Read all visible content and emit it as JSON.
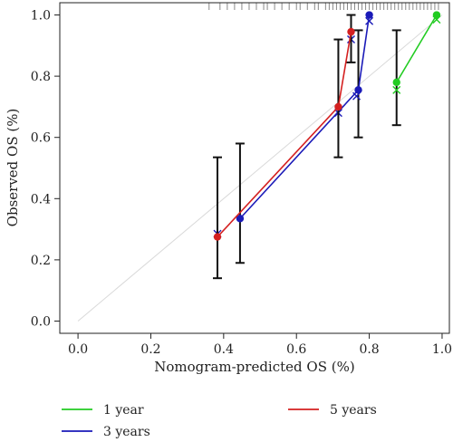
{
  "chart_data": {
    "type": "line",
    "title": "",
    "xlabel": "Nomogram-predicted OS (%)",
    "ylabel": "Observed OS (%)",
    "xlim": [
      -0.05,
      1.02
    ],
    "ylim": [
      -0.04,
      1.04
    ],
    "x_ticks": [
      0.0,
      0.2,
      0.4,
      0.6,
      0.8,
      1.0
    ],
    "y_ticks": [
      0.0,
      0.2,
      0.4,
      0.6,
      0.8,
      1.0
    ],
    "x_tick_labels": [
      "0.0",
      "0.2",
      "0.4",
      "0.6",
      "0.8",
      "1.0"
    ],
    "y_tick_labels": [
      "0.0",
      "0.2",
      "0.4",
      "0.6",
      "0.8",
      "1.0"
    ],
    "grid": false,
    "legend_position": "bottom",
    "reference_line": {
      "from": [
        0,
        0
      ],
      "to": [
        1,
        1
      ],
      "color": "#d9d9d9"
    },
    "rug_x": [
      0.36,
      0.39,
      0.41,
      0.43,
      0.45,
      0.47,
      0.49,
      0.51,
      0.52,
      0.54,
      0.56,
      0.58,
      0.6,
      0.61,
      0.63,
      0.65,
      0.66,
      0.68,
      0.69,
      0.7,
      0.71,
      0.72,
      0.73,
      0.74,
      0.75,
      0.76,
      0.77,
      0.78,
      0.79,
      0.8,
      0.81,
      0.82,
      0.83,
      0.84,
      0.85,
      0.86,
      0.87,
      0.88,
      0.89,
      0.9,
      0.91,
      0.92,
      0.93,
      0.94,
      0.95,
      0.96,
      0.97,
      0.98,
      0.99
    ],
    "series": [
      {
        "name": "1 year",
        "color": "#22cc22",
        "points": [
          {
            "x": 0.875,
            "y": 0.78,
            "lo": 0.64,
            "hi": 0.95
          },
          {
            "x": 0.985,
            "y": 1.0,
            "lo": 1.0,
            "hi": 1.0
          }
        ],
        "crosses": [
          {
            "x": 0.875,
            "y": 0.755
          },
          {
            "x": 0.985,
            "y": 0.985
          }
        ]
      },
      {
        "name": "3 years",
        "color": "#1a1ab8",
        "points": [
          {
            "x": 0.445,
            "y": 0.335,
            "lo": 0.19,
            "hi": 0.58
          },
          {
            "x": 0.77,
            "y": 0.755,
            "lo": 0.6,
            "hi": 0.95
          },
          {
            "x": 0.8,
            "y": 1.0,
            "lo": 1.0,
            "hi": 1.0
          }
        ],
        "crosses": [
          {
            "x": 0.383,
            "y": 0.285
          },
          {
            "x": 0.715,
            "y": 0.68
          },
          {
            "x": 0.765,
            "y": 0.735
          },
          {
            "x": 0.8,
            "y": 0.98
          },
          {
            "x": 0.75,
            "y": 0.92
          }
        ]
      },
      {
        "name": "5 years",
        "color": "#d42020",
        "points": [
          {
            "x": 0.383,
            "y": 0.275,
            "lo": 0.14,
            "hi": 0.535
          },
          {
            "x": 0.715,
            "y": 0.7,
            "lo": 0.535,
            "hi": 0.92
          },
          {
            "x": 0.75,
            "y": 0.945,
            "lo": 0.845,
            "hi": 1.0
          }
        ],
        "crosses": []
      }
    ]
  }
}
